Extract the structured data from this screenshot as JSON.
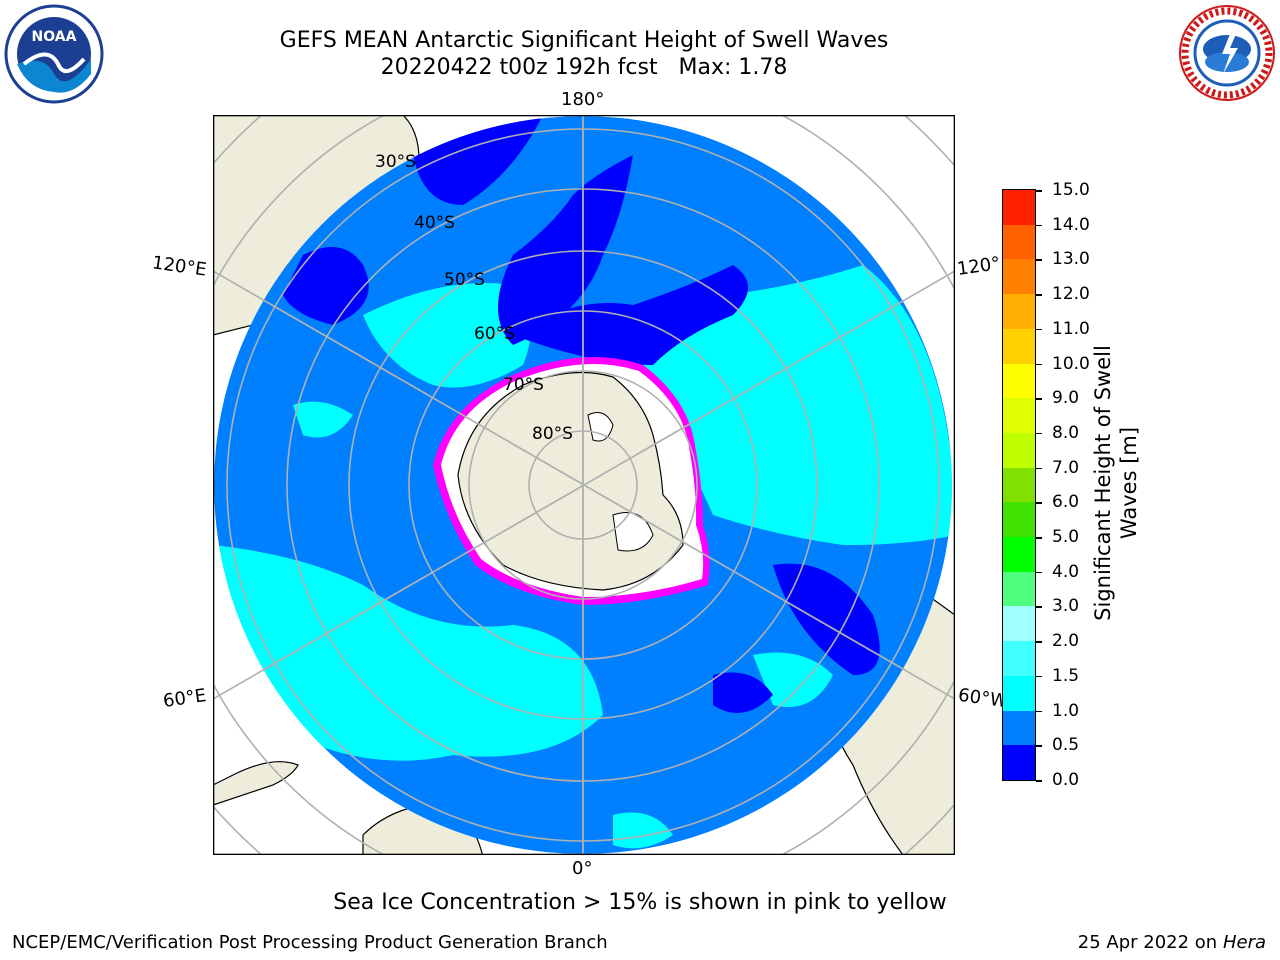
{
  "title": {
    "line1": "GEFS MEAN Antarctic Significant Height of Swell Waves",
    "line2": "20220422 t00z 192h fcst   Max: 1.78"
  },
  "logos": {
    "left": {
      "text": "NOAA",
      "icon": "noaa-logo"
    },
    "right": {
      "text": "NATIONAL WEATHER SERVICE",
      "icon": "nws-logo"
    }
  },
  "map": {
    "longitude_labels": {
      "top": "180°",
      "bottom": "0°",
      "left_upper": "120°E",
      "left_lower": "60°E",
      "right_upper": "120°",
      "right_lower": "60°W"
    },
    "latitude_labels": [
      "30°S",
      "40°S",
      "50°S",
      "60°S",
      "70°S",
      "80°S"
    ],
    "colors": {
      "land": "#eeecda",
      "ocean_low": "#0080ff",
      "ocean_min": "#0000ff",
      "ocean_mid": "#00ffff",
      "ice_edge": "#ff00ff",
      "ice": "#ffffff",
      "grid": "#b0b0b0"
    }
  },
  "colorbar": {
    "label": "Significant Height of Swell Waves [m]",
    "ticks": [
      "0.0",
      "0.5",
      "1.0",
      "1.5",
      "2.0",
      "3.0",
      "4.0",
      "5.0",
      "6.0",
      "7.0",
      "8.0",
      "9.0",
      "10.0",
      "11.0",
      "12.0",
      "13.0",
      "14.0",
      "15.0"
    ],
    "colors": [
      "#0000ff",
      "#0080ff",
      "#00ffff",
      "#40ffff",
      "#a0ffff",
      "#50ff80",
      "#00ff00",
      "#40e000",
      "#80e000",
      "#c0ff00",
      "#e0ff00",
      "#ffff00",
      "#ffd000",
      "#ffb000",
      "#ff8000",
      "#ff6000",
      "#ff2000"
    ]
  },
  "note": "Sea Ice Concentration > 15% is shown in pink to yellow",
  "footer": {
    "left": "NCEP/EMC/Verification Post Processing Product Generation Branch",
    "date": "25 Apr 2022 on ",
    "host": "Hera"
  }
}
